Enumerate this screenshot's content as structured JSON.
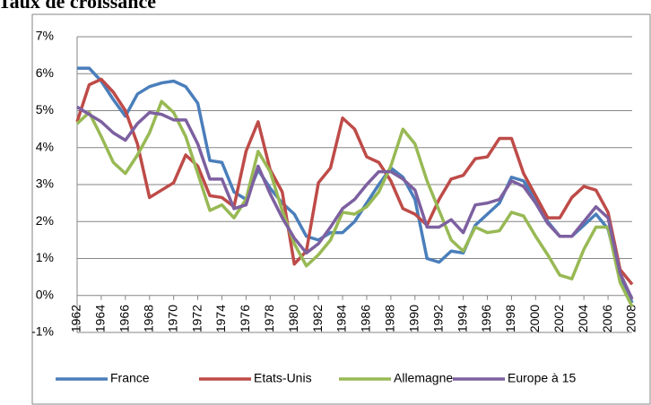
{
  "chart_data": {
    "type": "line",
    "title": "Taux de croissance",
    "x": [
      1962,
      1963,
      1964,
      1965,
      1966,
      1967,
      1968,
      1969,
      1970,
      1971,
      1972,
      1973,
      1974,
      1975,
      1976,
      1977,
      1978,
      1979,
      1980,
      1981,
      1982,
      1983,
      1984,
      1985,
      1986,
      1987,
      1988,
      1989,
      1990,
      1991,
      1992,
      1993,
      1994,
      1995,
      1996,
      1997,
      1998,
      1999,
      2000,
      2001,
      2002,
      2003,
      2004,
      2005,
      2006,
      2007,
      2008
    ],
    "xlim": [
      1962,
      2008
    ],
    "xticks": [
      1962,
      1964,
      1966,
      1968,
      1970,
      1972,
      1974,
      1976,
      1978,
      1980,
      1982,
      1984,
      1986,
      1988,
      1990,
      1992,
      1994,
      1996,
      1998,
      2000,
      2002,
      2004,
      2006,
      2008
    ],
    "ylim": [
      -1,
      7
    ],
    "yticks": [
      {
        "value": -1,
        "label": "-1%"
      },
      {
        "value": 0,
        "label": "0%"
      },
      {
        "value": 1,
        "label": "1%"
      },
      {
        "value": 2,
        "label": "2%"
      },
      {
        "value": 3,
        "label": "3%"
      },
      {
        "value": 4,
        "label": "4%"
      },
      {
        "value": 5,
        "label": "5%"
      },
      {
        "value": 6,
        "label": "6%"
      },
      {
        "value": 7,
        "label": "7%"
      }
    ],
    "grid": true,
    "legend": "bottom",
    "series": [
      {
        "name": "France",
        "color": "#4a7ebb",
        "values": [
          6.15,
          6.15,
          5.8,
          5.3,
          4.85,
          5.45,
          5.65,
          5.75,
          5.8,
          5.65,
          5.2,
          3.65,
          3.6,
          2.8,
          2.6,
          3.4,
          2.9,
          2.5,
          2.2,
          1.6,
          1.5,
          1.7,
          1.7,
          2.0,
          2.5,
          3.0,
          3.45,
          3.2,
          2.6,
          1.0,
          0.9,
          1.2,
          1.15,
          1.9,
          2.2,
          2.5,
          3.2,
          3.1,
          2.6,
          2.0,
          1.6,
          1.6,
          1.9,
          2.2,
          1.8,
          0.5,
          -0.2
        ]
      },
      {
        "name": "Etats-Unis",
        "color": "#be4b48",
        "values": [
          4.7,
          5.7,
          5.85,
          5.5,
          5.0,
          4.1,
          2.65,
          2.85,
          3.05,
          3.8,
          3.5,
          2.7,
          2.65,
          2.4,
          3.9,
          4.7,
          3.4,
          2.8,
          0.85,
          1.2,
          3.05,
          3.45,
          4.8,
          4.5,
          3.75,
          3.6,
          3.1,
          2.35,
          2.2,
          1.9,
          2.6,
          3.15,
          3.25,
          3.7,
          3.75,
          4.25,
          4.25,
          3.3,
          2.7,
          2.1,
          2.1,
          2.65,
          2.95,
          2.85,
          2.25,
          0.7,
          0.3
        ]
      },
      {
        "name": "Allemagne",
        "color": "#98b954",
        "values": [
          4.65,
          4.95,
          4.3,
          3.6,
          3.3,
          3.8,
          4.4,
          5.25,
          4.95,
          4.3,
          3.3,
          2.3,
          2.45,
          2.1,
          2.6,
          3.9,
          3.35,
          2.3,
          1.4,
          0.8,
          1.1,
          1.5,
          2.25,
          2.2,
          2.4,
          2.8,
          3.5,
          4.5,
          4.1,
          3.1,
          2.3,
          1.5,
          1.2,
          1.85,
          1.7,
          1.75,
          2.25,
          2.15,
          1.6,
          1.1,
          0.55,
          0.45,
          1.25,
          1.85,
          1.85,
          0.35,
          -0.3
        ]
      },
      {
        "name": "Europe à 15",
        "color": "#7d60a0",
        "values": [
          5.1,
          4.9,
          4.7,
          4.4,
          4.2,
          4.65,
          4.95,
          4.9,
          4.75,
          4.75,
          4.1,
          3.15,
          3.15,
          2.35,
          2.45,
          3.5,
          2.75,
          2.1,
          1.55,
          1.15,
          1.4,
          1.85,
          2.35,
          2.6,
          3.0,
          3.35,
          3.35,
          3.15,
          2.85,
          1.85,
          1.85,
          2.05,
          1.7,
          2.45,
          2.5,
          2.6,
          3.1,
          2.95,
          2.5,
          1.95,
          1.6,
          1.6,
          2.0,
          2.4,
          2.1,
          0.6,
          -0.1
        ]
      }
    ]
  }
}
